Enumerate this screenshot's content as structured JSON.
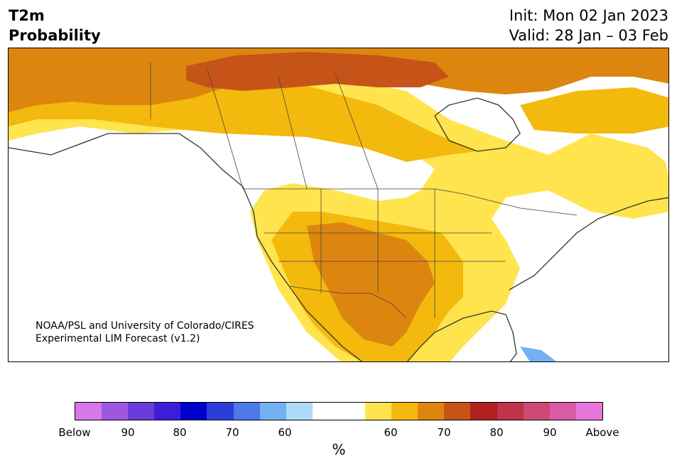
{
  "title": {
    "line1": "T2m",
    "line2": "Probability"
  },
  "init": "Init: Mon 02 Jan 2023",
  "valid": "Valid: 28 Jan – 03 Feb",
  "credit": {
    "line1": "NOAA/PSL and University of Colorado/CIRES",
    "line2": "Experimental LIM Forecast (v1.2)"
  },
  "colorbar": {
    "unit": "%",
    "colors": [
      "#d777e8",
      "#9e57e0",
      "#6a3bd8",
      "#3b1fd6",
      "#0000cc",
      "#2a3fd9",
      "#4f78e8",
      "#74b1f3",
      "#addcfa",
      "#ffffff",
      "#ffffff",
      "#ffe44d",
      "#f3b90c",
      "#dd860f",
      "#c65419",
      "#b12021",
      "#c0334a",
      "#cd4a77",
      "#da5ba5",
      "#e676d9"
    ],
    "labels": [
      "Below",
      "90",
      "80",
      "70",
      "60",
      "60",
      "70",
      "80",
      "90",
      "Above"
    ]
  },
  "legend_levels": {
    "below": [
      "Below",
      "90",
      "80",
      "70",
      "60"
    ],
    "above": [
      "60",
      "70",
      "80",
      "90",
      "Above"
    ]
  }
}
